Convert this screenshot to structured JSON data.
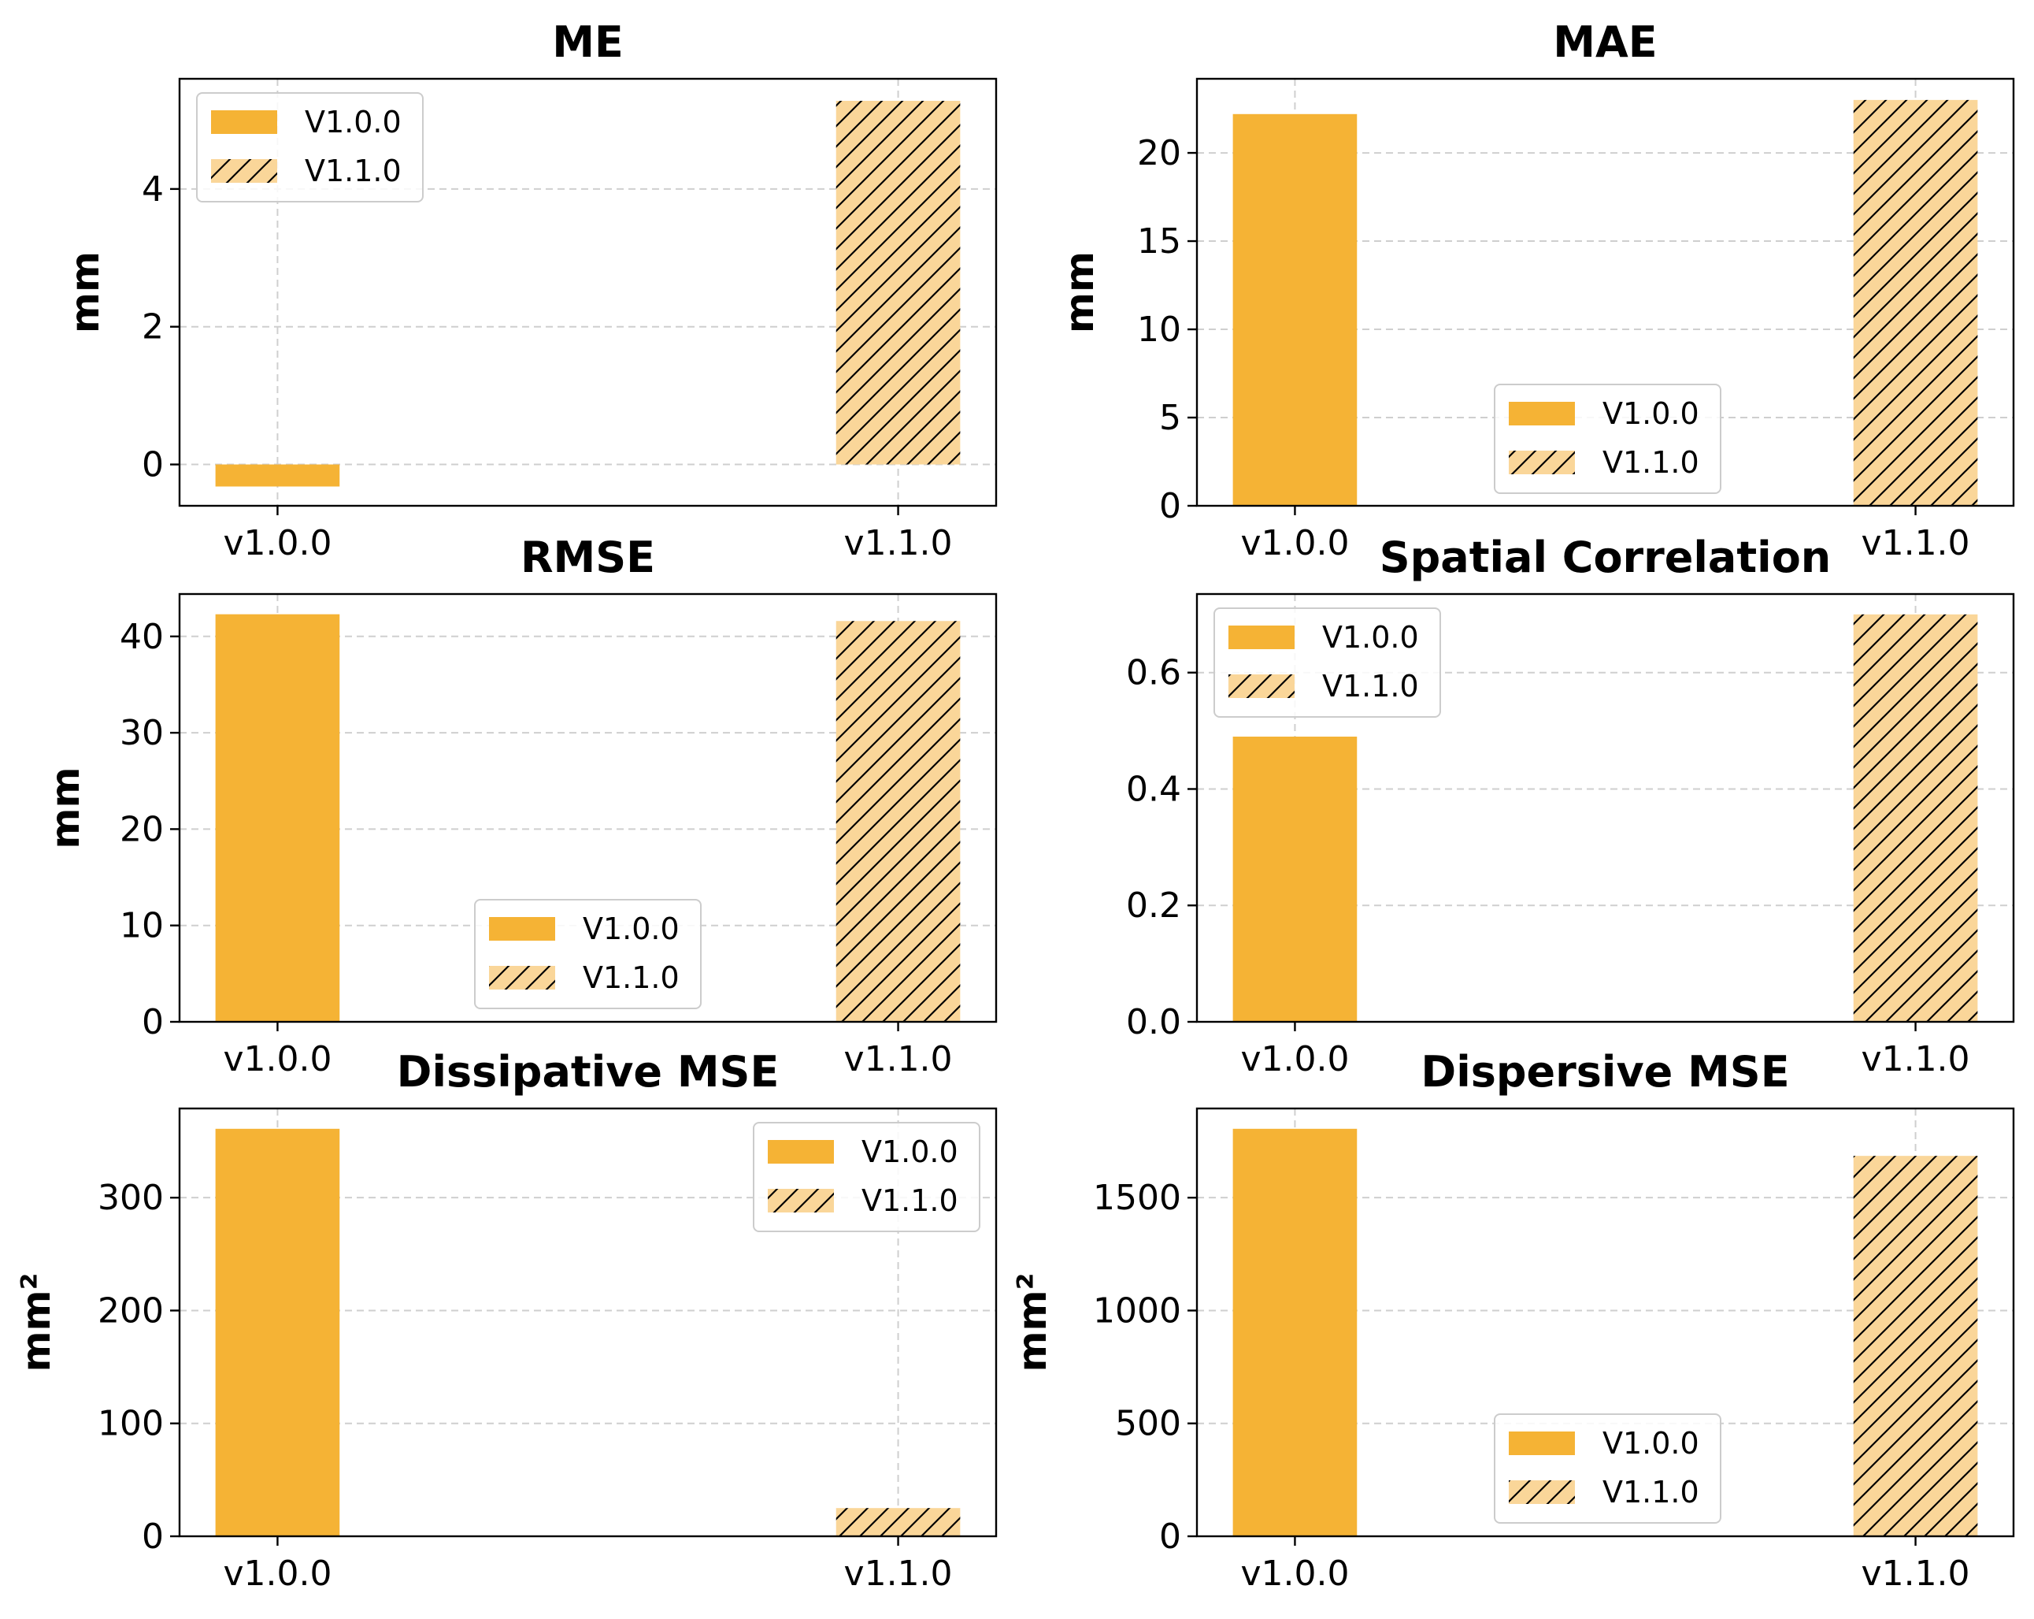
{
  "colors": {
    "v100": "#F5B335",
    "v110": "#FAD699",
    "hatch": "#000000"
  },
  "chart_data": [
    {
      "type": "bar",
      "title": "ME",
      "ylabel": "mm",
      "categories": [
        "v1.0.0",
        "v1.1.0"
      ],
      "ylim": [
        -0.6,
        5.6
      ],
      "yticks": [
        0,
        2,
        4
      ],
      "ytick_labels": [
        "0",
        "2",
        "4"
      ],
      "series": [
        {
          "name": "V1.0.0",
          "values": [
            -0.32,
            null
          ]
        },
        {
          "name": "V1.1.0",
          "values": [
            null,
            5.28
          ]
        }
      ],
      "grid": true,
      "legend": "upper left"
    },
    {
      "type": "bar",
      "title": "MAE",
      "ylabel": "mm",
      "categories": [
        "v1.0.0",
        "v1.1.0"
      ],
      "ylim": [
        0,
        24.2
      ],
      "yticks": [
        0,
        5,
        10,
        15,
        20
      ],
      "ytick_labels": [
        "0",
        "5",
        "10",
        "15",
        "20"
      ],
      "series": [
        {
          "name": "V1.0.0",
          "values": [
            22.2,
            null
          ]
        },
        {
          "name": "V1.1.0",
          "values": [
            null,
            23.0
          ]
        }
      ],
      "grid": true,
      "legend": "lower center"
    },
    {
      "type": "bar",
      "title": "RMSE",
      "ylabel": "mm",
      "categories": [
        "v1.0.0",
        "v1.1.0"
      ],
      "ylim": [
        0,
        44.4
      ],
      "yticks": [
        0,
        10,
        20,
        30,
        40
      ],
      "ytick_labels": [
        "0",
        "10",
        "20",
        "30",
        "40"
      ],
      "series": [
        {
          "name": "V1.0.0",
          "values": [
            42.3,
            null
          ]
        },
        {
          "name": "V1.1.0",
          "values": [
            null,
            41.6
          ]
        }
      ],
      "grid": true,
      "legend": "lower center"
    },
    {
      "type": "bar",
      "title": "Spatial Correlation",
      "ylabel": "",
      "categories": [
        "v1.0.0",
        "v1.1.0"
      ],
      "ylim": [
        0,
        0.735
      ],
      "yticks": [
        0,
        0.2,
        0.4,
        0.6
      ],
      "ytick_labels": [
        "0.0",
        "0.2",
        "0.4",
        "0.6"
      ],
      "series": [
        {
          "name": "V1.0.0",
          "values": [
            0.49,
            null
          ]
        },
        {
          "name": "V1.1.0",
          "values": [
            null,
            0.7
          ]
        }
      ],
      "grid": true,
      "legend": "upper left"
    },
    {
      "type": "bar",
      "title": "Dissipative MSE",
      "ylabel": "mm²",
      "categories": [
        "v1.0.0",
        "v1.1.0"
      ],
      "ylim": [
        0,
        379
      ],
      "yticks": [
        0,
        100,
        200,
        300
      ],
      "ytick_labels": [
        "0",
        "100",
        "200",
        "300"
      ],
      "series": [
        {
          "name": "V1.0.0",
          "values": [
            361,
            null
          ]
        },
        {
          "name": "V1.1.0",
          "values": [
            null,
            25
          ]
        }
      ],
      "grid": true,
      "legend": "upper right"
    },
    {
      "type": "bar",
      "title": "Dispersive MSE",
      "ylabel": "mm²",
      "categories": [
        "v1.0.0",
        "v1.1.0"
      ],
      "ylim": [
        0,
        1895
      ],
      "yticks": [
        0,
        500,
        1000,
        1500
      ],
      "ytick_labels": [
        "0",
        "500",
        "1000",
        "1500"
      ],
      "series": [
        {
          "name": "V1.0.0",
          "values": [
            1805,
            null
          ]
        },
        {
          "name": "V1.1.0",
          "values": [
            null,
            1685
          ]
        }
      ],
      "grid": true,
      "legend": "lower center"
    }
  ]
}
